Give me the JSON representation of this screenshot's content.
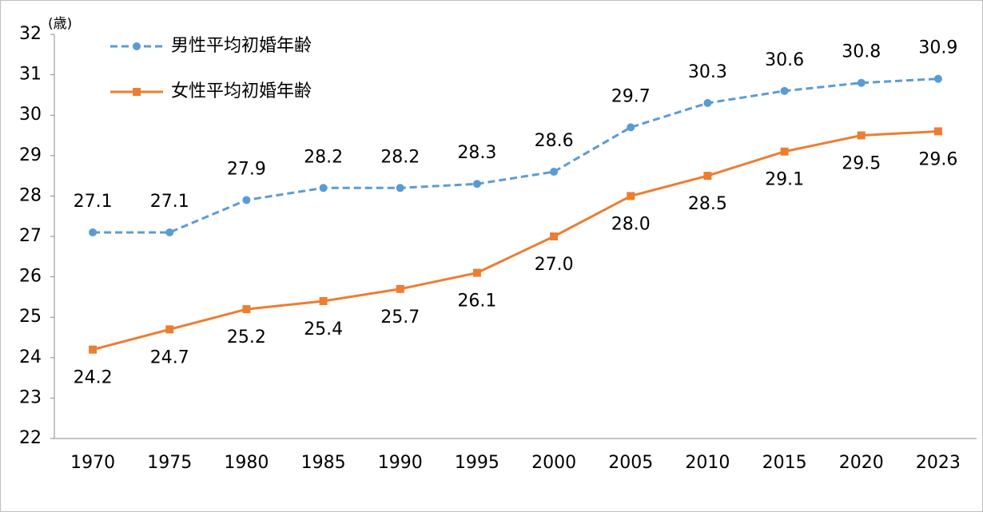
{
  "chart_data": {
    "type": "line",
    "y_label": "(歳)",
    "categories": [
      "1970",
      "1975",
      "1980",
      "1985",
      "1990",
      "1995",
      "2000",
      "2005",
      "2010",
      "2015",
      "2020",
      "2023"
    ],
    "series": [
      {
        "name": "男性平均初婚年齢",
        "color": "#5b9bd5",
        "line_style": "dashed",
        "marker": "circle",
        "label_position": "above",
        "values": [
          27.1,
          27.1,
          27.9,
          28.2,
          28.2,
          28.3,
          28.6,
          29.7,
          30.3,
          30.6,
          30.8,
          30.9
        ],
        "value_labels": [
          "27.1",
          "27.1",
          "27.9",
          "28.2",
          "28.2",
          "28.3",
          "28.6",
          "29.7",
          "30.3",
          "30.6",
          "30.8",
          "30.9"
        ]
      },
      {
        "name": "女性平均初婚年齢",
        "color": "#ed7d31",
        "line_style": "solid",
        "marker": "square",
        "label_position": "below",
        "values": [
          24.2,
          24.7,
          25.2,
          25.4,
          25.7,
          26.1,
          27.0,
          28.0,
          28.5,
          29.1,
          29.5,
          29.6
        ],
        "value_labels": [
          "24.2",
          "24.7",
          "25.2",
          "25.4",
          "25.7",
          "26.1",
          "27.0",
          "28.0",
          "28.5",
          "29.1",
          "29.5",
          "29.6"
        ]
      }
    ],
    "ylim": [
      22,
      32
    ],
    "yticks": [
      22,
      23,
      24,
      25,
      26,
      27,
      28,
      29,
      30,
      31,
      32
    ],
    "grid": false
  }
}
